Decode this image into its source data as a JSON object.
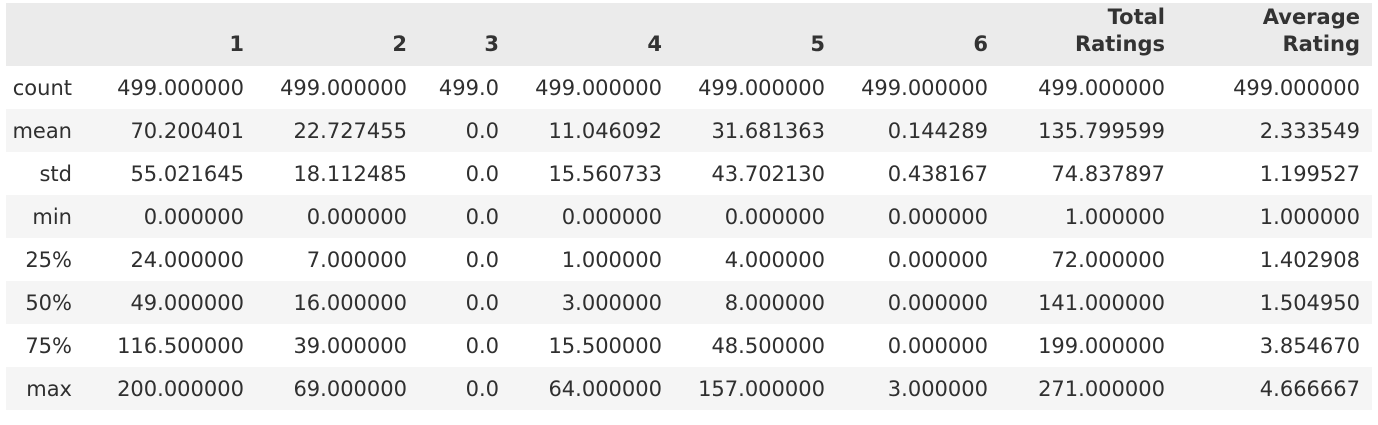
{
  "table": {
    "columns": [
      {
        "lines": [
          "",
          "1"
        ]
      },
      {
        "lines": [
          "",
          "2"
        ]
      },
      {
        "lines": [
          "",
          "3"
        ]
      },
      {
        "lines": [
          "",
          "4"
        ]
      },
      {
        "lines": [
          "",
          "5"
        ]
      },
      {
        "lines": [
          "",
          "6"
        ]
      },
      {
        "lines": [
          "Total",
          "Ratings"
        ]
      },
      {
        "lines": [
          "Average",
          "Rating"
        ]
      }
    ],
    "rows": [
      {
        "label": "count",
        "cells": [
          "499.000000",
          "499.000000",
          "499.0",
          "499.000000",
          "499.000000",
          "499.000000",
          "499.000000",
          "499.000000"
        ]
      },
      {
        "label": "mean",
        "cells": [
          "70.200401",
          "22.727455",
          "0.0",
          "11.046092",
          "31.681363",
          "0.144289",
          "135.799599",
          "2.333549"
        ]
      },
      {
        "label": "std",
        "cells": [
          "55.021645",
          "18.112485",
          "0.0",
          "15.560733",
          "43.702130",
          "0.438167",
          "74.837897",
          "1.199527"
        ]
      },
      {
        "label": "min",
        "cells": [
          "0.000000",
          "0.000000",
          "0.0",
          "0.000000",
          "0.000000",
          "0.000000",
          "1.000000",
          "1.000000"
        ]
      },
      {
        "label": "25%",
        "cells": [
          "24.000000",
          "7.000000",
          "0.0",
          "1.000000",
          "4.000000",
          "0.000000",
          "72.000000",
          "1.402908"
        ]
      },
      {
        "label": "50%",
        "cells": [
          "49.000000",
          "16.000000",
          "0.0",
          "3.000000",
          "8.000000",
          "0.000000",
          "141.000000",
          "1.504950"
        ]
      },
      {
        "label": "75%",
        "cells": [
          "116.500000",
          "39.000000",
          "0.0",
          "15.500000",
          "48.500000",
          "0.000000",
          "199.000000",
          "3.854670"
        ]
      },
      {
        "label": "max",
        "cells": [
          "200.000000",
          "69.000000",
          "0.0",
          "64.000000",
          "157.000000",
          "3.000000",
          "271.000000",
          "4.666667"
        ]
      }
    ]
  },
  "colors": {
    "header_bg": "#ebebeb",
    "stripe_bg": "#f5f5f5",
    "text": "#2f2f2f"
  }
}
